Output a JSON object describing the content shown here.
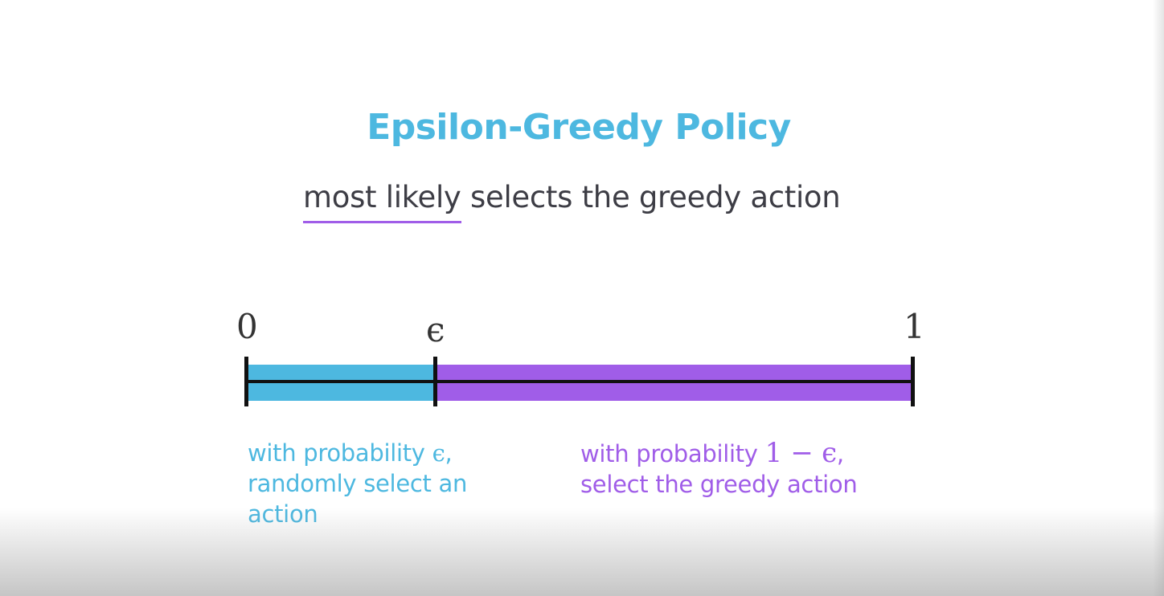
{
  "title": "Epsilon-Greedy Policy",
  "subtitle": {
    "highlight": "most likely",
    "rest": " selects the greedy action"
  },
  "axis": {
    "label_start": "0",
    "label_epsilon": "ϵ",
    "label_end": "1"
  },
  "segments": {
    "explore": {
      "line1_prefix": "with probability ",
      "line1_math": "ϵ",
      "line1_suffix": ",",
      "line2": "randomly select an",
      "line3": "action"
    },
    "exploit": {
      "line1_prefix": "with probability ",
      "line1_math": "1 − ϵ",
      "line1_suffix": ",",
      "line2": "select the greedy action"
    }
  },
  "colors": {
    "explore": "#4db8e0",
    "exploit": "#a05de8",
    "axis": "#111111"
  }
}
